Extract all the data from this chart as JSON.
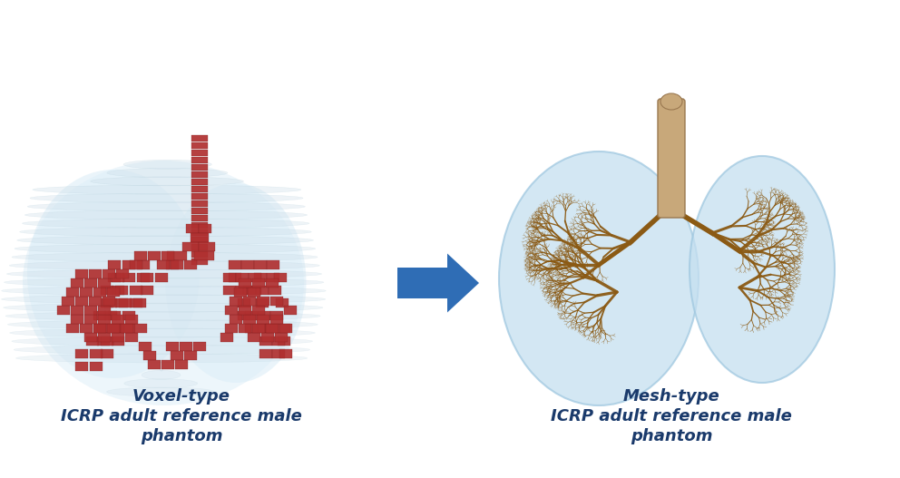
{
  "background_color": "#ffffff",
  "arrow_color": "#2F6DB5",
  "text_color": "#1a3a6b",
  "label_left_line1": "Voxel-type",
  "label_left_line2": "ICRP adult reference male",
  "label_left_line3": "phantom",
  "label_right_line1": "Mesh-type",
  "label_right_line2": "ICRP adult reference male",
  "label_right_line3": "phantom",
  "font_size": 13,
  "lung_slice_color": "#ccdde8",
  "lung_fill_color": "#ddeef8",
  "voxel_color": "#b03030",
  "trachea_voxel_color": "#c03030",
  "mesh_bronchi_color": "#8B5A14",
  "mesh_trachea_color": "#c8a87a",
  "mesh_lung_color": "#c5dff0",
  "mesh_lung_edge": "#a0c8e0",
  "figsize": [
    9.92,
    5.27
  ],
  "dpi": 100
}
